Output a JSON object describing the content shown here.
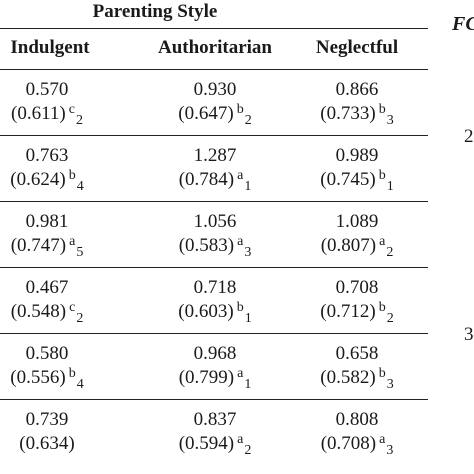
{
  "table": {
    "group_header": "Parenting Style",
    "columns": [
      "Indulgent",
      "Authoritarian",
      "Neglectful"
    ],
    "side_header": "FC",
    "side_numbers": [
      {
        "text": "2",
        "row_index": 1
      },
      {
        "text": "3",
        "row_index": 4
      }
    ],
    "rows": [
      {
        "cells": [
          {
            "mean": "0.570",
            "sd": "(0.611)",
            "sup": "c",
            "sub": "2"
          },
          {
            "mean": "0.930",
            "sd": "(0.647)",
            "sup": "b",
            "sub": "2"
          },
          {
            "mean": "0.866",
            "sd": "(0.733)",
            "sup": "b",
            "sub": "3"
          }
        ]
      },
      {
        "cells": [
          {
            "mean": "0.763",
            "sd": "(0.624)",
            "sup": "b",
            "sub": "4"
          },
          {
            "mean": "1.287",
            "sd": "(0.784)",
            "sup": "a",
            "sub": "1"
          },
          {
            "mean": "0.989",
            "sd": "(0.745)",
            "sup": "b",
            "sub": "1"
          }
        ]
      },
      {
        "cells": [
          {
            "mean": "0.981",
            "sd": "(0.747)",
            "sup": "a",
            "sub": "5"
          },
          {
            "mean": "1.056",
            "sd": "(0.583)",
            "sup": "a",
            "sub": "3"
          },
          {
            "mean": "1.089",
            "sd": "(0.807)",
            "sup": "a",
            "sub": "2"
          }
        ]
      },
      {
        "cells": [
          {
            "mean": "0.467",
            "sd": "(0.548)",
            "sup": "c",
            "sub": "2"
          },
          {
            "mean": "0.718",
            "sd": "(0.603)",
            "sup": "b",
            "sub": "1"
          },
          {
            "mean": "0.708",
            "sd": "(0.712)",
            "sup": "b",
            "sub": "2"
          }
        ]
      },
      {
        "cells": [
          {
            "mean": "0.580",
            "sd": "(0.556)",
            "sup": "b",
            "sub": "4"
          },
          {
            "mean": "0.968",
            "sd": "(0.799)",
            "sup": "a",
            "sub": "1"
          },
          {
            "mean": "0.658",
            "sd": "(0.582)",
            "sup": "b",
            "sub": "3"
          }
        ]
      },
      {
        "cells": [
          {
            "mean": "0.739",
            "sd": "(0.634)",
            "sup": "",
            "sub": ""
          },
          {
            "mean": "0.837",
            "sd": "(0.594)",
            "sup": "a",
            "sub": "2"
          },
          {
            "mean": "0.808",
            "sd": "(0.708)",
            "sup": "a",
            "sub": "3"
          }
        ]
      }
    ]
  }
}
